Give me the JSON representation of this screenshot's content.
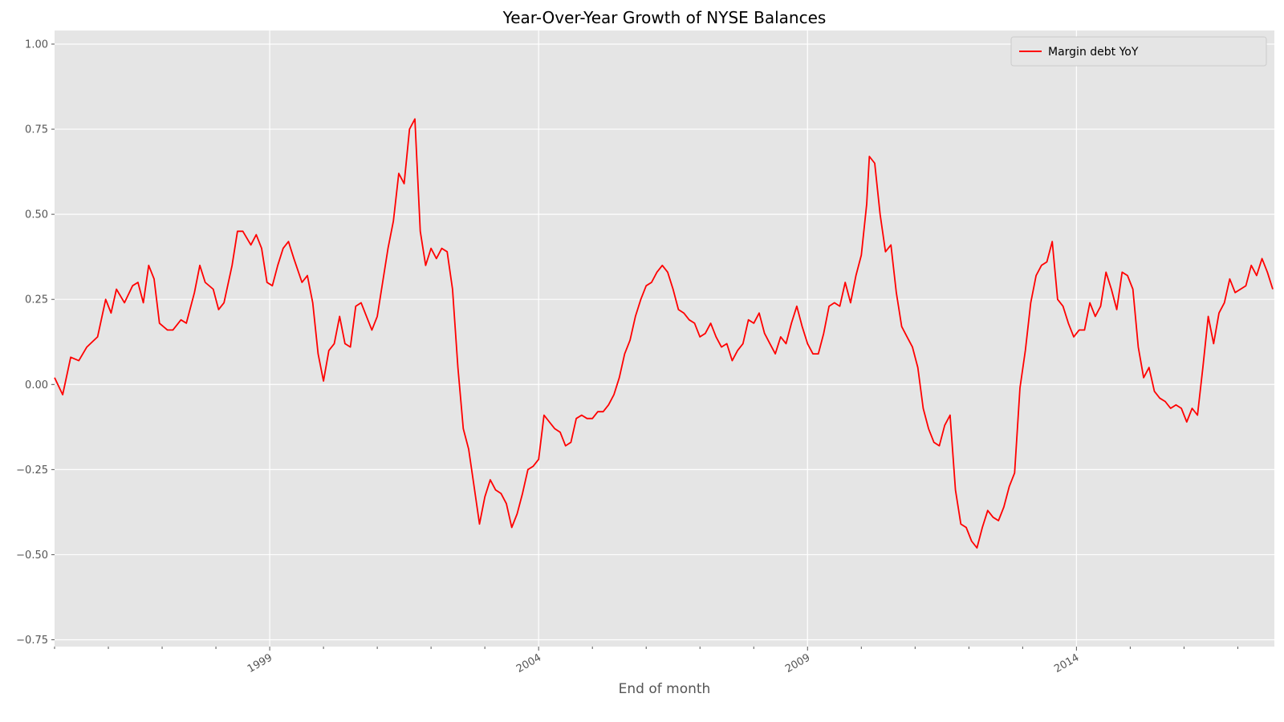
{
  "chart_data": {
    "type": "line",
    "title": "Year-Over-Year Growth of NYSE Balances",
    "xlabel": "End of month",
    "ylabel": "",
    "xlim": [
      1995.0,
      2017.68
    ],
    "ylim": [
      -0.77,
      1.04
    ],
    "x_ticks": [
      1999,
      2004,
      2009,
      2014
    ],
    "x_tick_labels": [
      "1999",
      "2004",
      "2009",
      "2014"
    ],
    "y_ticks": [
      -0.75,
      -0.5,
      -0.25,
      0.0,
      0.25,
      0.5,
      0.75,
      1.0
    ],
    "y_tick_labels": [
      "−0.75",
      "−0.50",
      "−0.25",
      "0.00",
      "0.25",
      "0.50",
      "0.75",
      "1.00"
    ],
    "grid": true,
    "legend_position": "top-right",
    "background": "#e5e5e5",
    "series": [
      {
        "name": "Margin debt YoY",
        "color": "#ff0000",
        "points": [
          [
            1995.0,
            0.02
          ],
          [
            1995.15,
            -0.03
          ],
          [
            1995.3,
            0.08
          ],
          [
            1995.45,
            0.07
          ],
          [
            1995.6,
            0.11
          ],
          [
            1995.8,
            0.14
          ],
          [
            1995.95,
            0.25
          ],
          [
            1996.05,
            0.21
          ],
          [
            1996.15,
            0.28
          ],
          [
            1996.3,
            0.24
          ],
          [
            1996.45,
            0.29
          ],
          [
            1996.55,
            0.3
          ],
          [
            1996.65,
            0.24
          ],
          [
            1996.75,
            0.35
          ],
          [
            1996.85,
            0.31
          ],
          [
            1996.95,
            0.18
          ],
          [
            1997.1,
            0.16
          ],
          [
            1997.2,
            0.16
          ],
          [
            1997.35,
            0.19
          ],
          [
            1997.45,
            0.18
          ],
          [
            1997.6,
            0.27
          ],
          [
            1997.7,
            0.35
          ],
          [
            1997.8,
            0.3
          ],
          [
            1997.95,
            0.28
          ],
          [
            1998.05,
            0.22
          ],
          [
            1998.15,
            0.24
          ],
          [
            1998.3,
            0.35
          ],
          [
            1998.4,
            0.45
          ],
          [
            1998.5,
            0.45
          ],
          [
            1998.65,
            0.41
          ],
          [
            1998.75,
            0.44
          ],
          [
            1998.85,
            0.4
          ],
          [
            1998.95,
            0.3
          ],
          [
            1999.05,
            0.29
          ],
          [
            1999.15,
            0.35
          ],
          [
            1999.25,
            0.4
          ],
          [
            1999.35,
            0.42
          ],
          [
            1999.45,
            0.37
          ],
          [
            1999.6,
            0.3
          ],
          [
            1999.7,
            0.32
          ],
          [
            1999.8,
            0.24
          ],
          [
            1999.9,
            0.09
          ],
          [
            2000.0,
            0.01
          ],
          [
            2000.1,
            0.1
          ],
          [
            2000.2,
            0.12
          ],
          [
            2000.3,
            0.2
          ],
          [
            2000.4,
            0.12
          ],
          [
            2000.5,
            0.11
          ],
          [
            2000.6,
            0.23
          ],
          [
            2000.7,
            0.24
          ],
          [
            2000.8,
            0.2
          ],
          [
            2000.9,
            0.16
          ],
          [
            2001.0,
            0.2
          ],
          [
            2001.1,
            0.3
          ],
          [
            2001.2,
            0.4
          ],
          [
            2001.3,
            0.48
          ],
          [
            2001.4,
            0.62
          ],
          [
            2001.5,
            0.59
          ],
          [
            2001.6,
            0.75
          ],
          [
            2001.7,
            0.78
          ],
          [
            2001.8,
            0.45
          ],
          [
            2001.9,
            0.35
          ],
          [
            2002.0,
            0.4
          ],
          [
            2002.1,
            0.37
          ],
          [
            2002.2,
            0.4
          ],
          [
            2002.3,
            0.39
          ],
          [
            2002.4,
            0.28
          ],
          [
            2002.5,
            0.05
          ],
          [
            2002.6,
            -0.13
          ],
          [
            2002.7,
            -0.19
          ],
          [
            2002.8,
            -0.3
          ],
          [
            2002.9,
            -0.41
          ],
          [
            2003.0,
            -0.33
          ],
          [
            2003.1,
            -0.28
          ],
          [
            2003.2,
            -0.31
          ],
          [
            2003.3,
            -0.32
          ],
          [
            2003.4,
            -0.35
          ],
          [
            2003.5,
            -0.42
          ],
          [
            2003.6,
            -0.38
          ],
          [
            2003.7,
            -0.32
          ],
          [
            2003.8,
            -0.25
          ],
          [
            2003.9,
            -0.24
          ],
          [
            2004.0,
            -0.22
          ],
          [
            2004.1,
            -0.09
          ],
          [
            2004.2,
            -0.11
          ],
          [
            2004.3,
            -0.13
          ],
          [
            2004.4,
            -0.14
          ],
          [
            2004.5,
            -0.18
          ],
          [
            2004.6,
            -0.17
          ],
          [
            2004.7,
            -0.1
          ],
          [
            2004.8,
            -0.09
          ],
          [
            2004.9,
            -0.1
          ],
          [
            2005.0,
            -0.1
          ],
          [
            2005.1,
            -0.08
          ],
          [
            2005.2,
            -0.08
          ],
          [
            2005.3,
            -0.06
          ],
          [
            2005.4,
            -0.03
          ],
          [
            2005.5,
            0.02
          ],
          [
            2005.6,
            0.09
          ],
          [
            2005.7,
            0.13
          ],
          [
            2005.8,
            0.2
          ],
          [
            2005.9,
            0.25
          ],
          [
            2006.0,
            0.29
          ],
          [
            2006.1,
            0.3
          ],
          [
            2006.2,
            0.33
          ],
          [
            2006.3,
            0.35
          ],
          [
            2006.4,
            0.33
          ],
          [
            2006.5,
            0.28
          ],
          [
            2006.6,
            0.22
          ],
          [
            2006.7,
            0.21
          ],
          [
            2006.8,
            0.19
          ],
          [
            2006.9,
            0.18
          ],
          [
            2007.0,
            0.14
          ],
          [
            2007.1,
            0.15
          ],
          [
            2007.2,
            0.18
          ],
          [
            2007.3,
            0.14
          ],
          [
            2007.4,
            0.11
          ],
          [
            2007.5,
            0.12
          ],
          [
            2007.6,
            0.07
          ],
          [
            2007.7,
            0.1
          ],
          [
            2007.8,
            0.12
          ],
          [
            2007.9,
            0.19
          ],
          [
            2008.0,
            0.18
          ],
          [
            2008.1,
            0.21
          ],
          [
            2008.2,
            0.15
          ],
          [
            2008.3,
            0.12
          ],
          [
            2008.4,
            0.09
          ],
          [
            2008.5,
            0.14
          ],
          [
            2008.6,
            0.12
          ],
          [
            2008.7,
            0.18
          ],
          [
            2008.8,
            0.23
          ],
          [
            2008.9,
            0.17
          ],
          [
            2009.0,
            0.12
          ],
          [
            2009.1,
            0.09
          ],
          [
            2009.2,
            0.09
          ],
          [
            2009.3,
            0.15
          ],
          [
            2009.4,
            0.23
          ],
          [
            2009.5,
            0.24
          ],
          [
            2009.6,
            0.23
          ],
          [
            2009.7,
            0.3
          ],
          [
            2009.8,
            0.24
          ],
          [
            2009.9,
            0.32
          ],
          [
            2010.0,
            0.38
          ],
          [
            2010.1,
            0.53
          ],
          [
            2010.15,
            0.67
          ],
          [
            2010.25,
            0.65
          ],
          [
            2010.35,
            0.5
          ],
          [
            2010.45,
            0.39
          ],
          [
            2010.55,
            0.41
          ],
          [
            2010.65,
            0.27
          ],
          [
            2010.75,
            0.17
          ],
          [
            2010.85,
            0.14
          ],
          [
            2010.95,
            0.11
          ],
          [
            2011.05,
            0.05
          ],
          [
            2011.15,
            -0.07
          ],
          [
            2011.25,
            -0.13
          ],
          [
            2011.35,
            -0.17
          ],
          [
            2011.45,
            -0.18
          ],
          [
            2011.55,
            -0.12
          ],
          [
            2011.65,
            -0.09
          ],
          [
            2011.75,
            -0.31
          ],
          [
            2011.85,
            -0.41
          ],
          [
            2011.95,
            -0.42
          ],
          [
            2012.05,
            -0.46
          ],
          [
            2012.15,
            -0.48
          ],
          [
            2012.25,
            -0.42
          ],
          [
            2012.35,
            -0.37
          ],
          [
            2012.45,
            -0.39
          ],
          [
            2012.55,
            -0.4
          ],
          [
            2012.65,
            -0.36
          ],
          [
            2012.75,
            -0.3
          ],
          [
            2012.85,
            -0.26
          ],
          [
            2012.95,
            -0.01
          ],
          [
            2013.05,
            0.1
          ],
          [
            2013.15,
            0.24
          ],
          [
            2013.25,
            0.32
          ],
          [
            2013.35,
            0.35
          ],
          [
            2013.45,
            0.36
          ],
          [
            2013.55,
            0.42
          ],
          [
            2013.65,
            0.25
          ],
          [
            2013.75,
            0.23
          ],
          [
            2013.85,
            0.18
          ],
          [
            2013.95,
            0.14
          ],
          [
            2014.05,
            0.16
          ],
          [
            2014.15,
            0.16
          ],
          [
            2014.25,
            0.24
          ],
          [
            2014.35,
            0.2
          ],
          [
            2014.45,
            0.23
          ],
          [
            2014.55,
            0.33
          ],
          [
            2014.65,
            0.28
          ],
          [
            2014.75,
            0.22
          ],
          [
            2014.85,
            0.33
          ],
          [
            2014.95,
            0.32
          ],
          [
            2015.05,
            0.28
          ],
          [
            2015.15,
            0.11
          ],
          [
            2015.25,
            0.02
          ],
          [
            2015.35,
            0.05
          ],
          [
            2015.45,
            -0.02
          ],
          [
            2015.55,
            -0.04
          ],
          [
            2015.65,
            -0.05
          ],
          [
            2015.75,
            -0.07
          ],
          [
            2015.85,
            -0.06
          ],
          [
            2015.95,
            -0.07
          ],
          [
            2016.05,
            -0.11
          ],
          [
            2016.15,
            -0.07
          ],
          [
            2016.25,
            -0.09
          ],
          [
            2016.35,
            0.05
          ],
          [
            2016.45,
            0.2
          ],
          [
            2016.55,
            0.12
          ],
          [
            2016.65,
            0.21
          ],
          [
            2016.75,
            0.24
          ],
          [
            2016.85,
            0.31
          ],
          [
            2016.95,
            0.27
          ],
          [
            2017.05,
            0.28
          ],
          [
            2017.15,
            0.29
          ],
          [
            2017.25,
            0.35
          ],
          [
            2017.35,
            0.32
          ],
          [
            2017.45,
            0.37
          ],
          [
            2017.55,
            0.33
          ],
          [
            2017.65,
            0.28
          ],
          [
            2017.75,
            0.3
          ],
          [
            2017.85,
            0.3
          ],
          [
            2017.95,
            0.35
          ]
        ]
      }
    ]
  }
}
